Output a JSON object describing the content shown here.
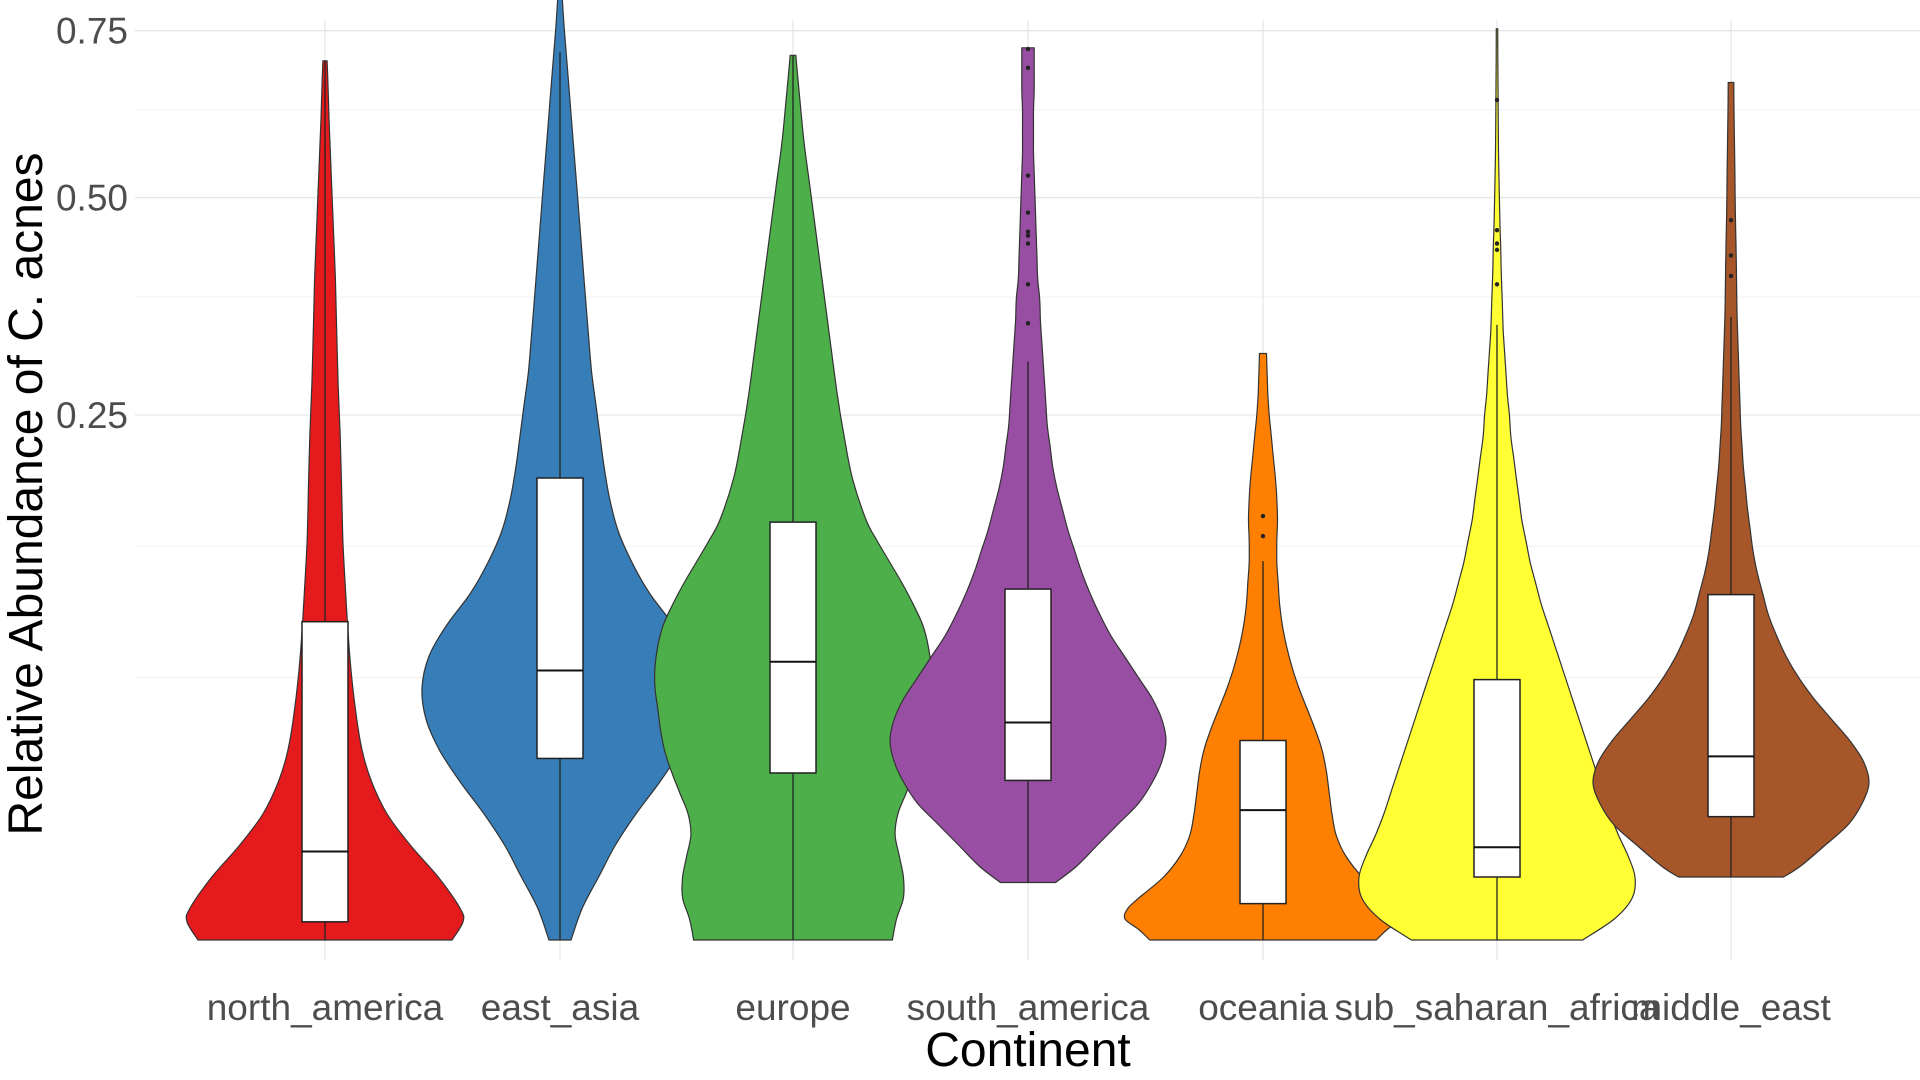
{
  "chart_data": {
    "type": "violin",
    "title": "",
    "xlabel": "Continent",
    "ylabel": "Relative Abundance of C. acnes",
    "y_scale": "sqrt",
    "ylim": [
      0,
      0.88
    ],
    "y_ticks": [
      0.25,
      0.5,
      0.75
    ],
    "y_tick_labels": [
      "0.25",
      "0.50",
      "0.75"
    ],
    "y_minor_ticks": [
      0.0625,
      0.1406,
      0.375,
      0.625
    ],
    "grid": true,
    "legend": "none",
    "categories": [
      "north_america",
      "east_asia",
      "europe",
      "south_america",
      "oceania",
      "sub_saharan_africa",
      "middle_east"
    ],
    "series": [
      {
        "category": "north_america",
        "color": "#E41A1C",
        "min": 0.0,
        "q1": 0.0003,
        "median": 0.0071,
        "q3": 0.0919,
        "max": 0.701,
        "outliers": [],
        "density": [
          [
            0.0,
            0.92
          ],
          [
            0.0003,
            1.0
          ],
          [
            0.0009,
            0.98
          ],
          [
            0.0036,
            0.82
          ],
          [
            0.0081,
            0.62
          ],
          [
            0.0144,
            0.45
          ],
          [
            0.0225,
            0.34
          ],
          [
            0.0324,
            0.27
          ],
          [
            0.0484,
            0.22
          ],
          [
            0.0729,
            0.18
          ],
          [
            0.1089,
            0.15
          ],
          [
            0.1444,
            0.13
          ],
          [
            0.1849,
            0.12
          ],
          [
            0.2304,
            0.11
          ],
          [
            0.2809,
            0.095
          ],
          [
            0.3364,
            0.085
          ],
          [
            0.3969,
            0.075
          ],
          [
            0.4624,
            0.06
          ],
          [
            0.5329,
            0.045
          ],
          [
            0.6084,
            0.03
          ],
          [
            0.6724,
            0.02
          ],
          [
            0.701,
            0.015
          ]
        ]
      },
      {
        "category": "east_asia",
        "color": "#377EB8",
        "min": 0.0,
        "q1": 0.0299,
        "median": 0.0659,
        "q3": 0.1936,
        "max": 0.83,
        "outliers": [
          0.812,
          0.83
        ],
        "density": [
          [
            0.0,
            0.08
          ],
          [
            0.0009,
            0.16
          ],
          [
            0.0036,
            0.28
          ],
          [
            0.0081,
            0.4
          ],
          [
            0.0144,
            0.55
          ],
          [
            0.0225,
            0.72
          ],
          [
            0.0324,
            0.87
          ],
          [
            0.0441,
            0.97
          ],
          [
            0.0576,
            1.0
          ],
          [
            0.0729,
            0.95
          ],
          [
            0.09,
            0.82
          ],
          [
            0.1089,
            0.65
          ],
          [
            0.1296,
            0.52
          ],
          [
            0.1521,
            0.42
          ],
          [
            0.1764,
            0.36
          ],
          [
            0.2025,
            0.32
          ],
          [
            0.2304,
            0.29
          ],
          [
            0.2601,
            0.26
          ],
          [
            0.2916,
            0.23
          ],
          [
            0.3249,
            0.21
          ],
          [
            0.3844,
            0.18
          ],
          [
            0.4489,
            0.15
          ],
          [
            0.5184,
            0.12
          ],
          [
            0.5929,
            0.09
          ],
          [
            0.6724,
            0.06
          ],
          [
            0.7569,
            0.03
          ],
          [
            0.8281,
            0.01
          ]
        ]
      },
      {
        "category": "europe",
        "color": "#4DAF4A",
        "min": 0.0,
        "q1": 0.0253,
        "median": 0.0702,
        "q3": 0.1584,
        "max": 0.71,
        "outliers": [],
        "density": [
          [
            0.0,
            0.72
          ],
          [
            0.0004,
            0.75
          ],
          [
            0.0016,
            0.8
          ],
          [
            0.0036,
            0.8
          ],
          [
            0.0064,
            0.77
          ],
          [
            0.01,
            0.74
          ],
          [
            0.0144,
            0.76
          ],
          [
            0.0196,
            0.82
          ],
          [
            0.0256,
            0.88
          ],
          [
            0.0324,
            0.93
          ],
          [
            0.04,
            0.96
          ],
          [
            0.0484,
            0.98
          ],
          [
            0.0576,
            1.0
          ],
          [
            0.0676,
            1.0
          ],
          [
            0.0784,
            0.98
          ],
          [
            0.09,
            0.94
          ],
          [
            0.1024,
            0.87
          ],
          [
            0.1156,
            0.79
          ],
          [
            0.1296,
            0.7
          ],
          [
            0.1444,
            0.61
          ],
          [
            0.16,
            0.53
          ],
          [
            0.1936,
            0.43
          ],
          [
            0.2304,
            0.37
          ],
          [
            0.2704,
            0.32
          ],
          [
            0.3136,
            0.28
          ],
          [
            0.36,
            0.24
          ],
          [
            0.4096,
            0.2
          ],
          [
            0.4624,
            0.16
          ],
          [
            0.5184,
            0.12
          ],
          [
            0.5776,
            0.08
          ],
          [
            0.64,
            0.05
          ],
          [
            0.71,
            0.02
          ]
        ]
      },
      {
        "category": "south_america",
        "color": "#984EA3",
        "min": 0.003,
        "q1": 0.0231,
        "median": 0.0429,
        "q3": 0.1117,
        "max": 0.722,
        "outliers": [
          0.345,
          0.39,
          0.44,
          0.45,
          0.455,
          0.48,
          0.53,
          0.69,
          0.72
        ],
        "density": [
          [
            0.003,
            0.2
          ],
          [
            0.0049,
            0.35
          ],
          [
            0.0081,
            0.5
          ],
          [
            0.0121,
            0.65
          ],
          [
            0.0169,
            0.8
          ],
          [
            0.0225,
            0.9
          ],
          [
            0.0289,
            0.97
          ],
          [
            0.0361,
            1.0
          ],
          [
            0.0441,
            0.97
          ],
          [
            0.0529,
            0.9
          ],
          [
            0.0625,
            0.8
          ],
          [
            0.0729,
            0.7
          ],
          [
            0.0841,
            0.6
          ],
          [
            0.0961,
            0.52
          ],
          [
            0.1089,
            0.45
          ],
          [
            0.1225,
            0.39
          ],
          [
            0.1369,
            0.34
          ],
          [
            0.1521,
            0.29
          ],
          [
            0.1681,
            0.25
          ],
          [
            0.1849,
            0.21
          ],
          [
            0.2025,
            0.18
          ],
          [
            0.2209,
            0.16
          ],
          [
            0.2401,
            0.14
          ],
          [
            0.2601,
            0.13
          ],
          [
            0.2809,
            0.12
          ],
          [
            0.3025,
            0.11
          ],
          [
            0.3249,
            0.1
          ],
          [
            0.3481,
            0.09
          ],
          [
            0.3721,
            0.085
          ],
          [
            0.3969,
            0.07
          ],
          [
            0.4225,
            0.065
          ],
          [
            0.4489,
            0.06
          ],
          [
            0.4761,
            0.055
          ],
          [
            0.5041,
            0.05
          ],
          [
            0.5329,
            0.045
          ],
          [
            0.5625,
            0.04
          ],
          [
            0.5929,
            0.04
          ],
          [
            0.6241,
            0.04
          ],
          [
            0.6561,
            0.045
          ],
          [
            0.6889,
            0.045
          ],
          [
            0.722,
            0.045
          ]
        ]
      },
      {
        "category": "oceania",
        "color": "#FF7F00",
        "min": 0.0,
        "q1": 0.0012,
        "median": 0.0153,
        "q3": 0.0361,
        "max": 0.312,
        "outliers": [
          0.148,
          0.163
        ],
        "density": [
          [
            0.0,
            0.82
          ],
          [
            0.0001,
            0.9
          ],
          [
            0.0004,
            1.0
          ],
          [
            0.0009,
            0.98
          ],
          [
            0.0016,
            0.9
          ],
          [
            0.0036,
            0.72
          ],
          [
            0.0064,
            0.6
          ],
          [
            0.01,
            0.53
          ],
          [
            0.0144,
            0.5
          ],
          [
            0.0196,
            0.48
          ],
          [
            0.0256,
            0.46
          ],
          [
            0.0324,
            0.43
          ],
          [
            0.04,
            0.38
          ],
          [
            0.0484,
            0.32
          ],
          [
            0.0576,
            0.26
          ],
          [
            0.0676,
            0.21
          ],
          [
            0.0784,
            0.17
          ],
          [
            0.09,
            0.14
          ],
          [
            0.1024,
            0.12
          ],
          [
            0.1156,
            0.11
          ],
          [
            0.1296,
            0.1
          ],
          [
            0.1444,
            0.1
          ],
          [
            0.16,
            0.105
          ],
          [
            0.1764,
            0.1
          ],
          [
            0.1936,
            0.09
          ],
          [
            0.2116,
            0.075
          ],
          [
            0.2304,
            0.06
          ],
          [
            0.25,
            0.045
          ],
          [
            0.2704,
            0.035
          ],
          [
            0.2916,
            0.03
          ],
          [
            0.312,
            0.025
          ]
        ]
      },
      {
        "category": "sub_saharan_africa",
        "color": "#FFFF33",
        "min": 0.0,
        "q1": 0.0036,
        "median": 0.0078,
        "q3": 0.0615,
        "max": 0.753,
        "outliers": [
          0.39,
          0.432,
          0.44,
          0.457,
          0.64
        ],
        "density": [
          [
            0.0,
            0.62
          ],
          [
            0.0004,
            0.85
          ],
          [
            0.0016,
            0.98
          ],
          [
            0.0036,
            1.0
          ],
          [
            0.0064,
            0.95
          ],
          [
            0.01,
            0.88
          ],
          [
            0.0144,
            0.82
          ],
          [
            0.0196,
            0.77
          ],
          [
            0.0256,
            0.72
          ],
          [
            0.0324,
            0.67
          ],
          [
            0.04,
            0.62
          ],
          [
            0.0484,
            0.57
          ],
          [
            0.0576,
            0.52
          ],
          [
            0.0676,
            0.47
          ],
          [
            0.0784,
            0.42
          ],
          [
            0.09,
            0.37
          ],
          [
            0.1024,
            0.32
          ],
          [
            0.1156,
            0.28
          ],
          [
            0.1296,
            0.24
          ],
          [
            0.1444,
            0.21
          ],
          [
            0.16,
            0.18
          ],
          [
            0.1764,
            0.16
          ],
          [
            0.1936,
            0.14
          ],
          [
            0.2116,
            0.12
          ],
          [
            0.2304,
            0.1
          ],
          [
            0.25,
            0.09
          ],
          [
            0.2704,
            0.075
          ],
          [
            0.2916,
            0.065
          ],
          [
            0.3136,
            0.055
          ],
          [
            0.3364,
            0.045
          ],
          [
            0.36,
            0.04
          ],
          [
            0.3844,
            0.035
          ],
          [
            0.4096,
            0.03
          ],
          [
            0.4356,
            0.027
          ],
          [
            0.4624,
            0.022
          ],
          [
            0.5184,
            0.015
          ],
          [
            0.5776,
            0.01
          ],
          [
            0.64,
            0.008
          ],
          [
            0.7056,
            0.006
          ],
          [
            0.753,
            0.005
          ]
        ]
      },
      {
        "category": "middle_east",
        "color": "#A65628",
        "min": 0.0036,
        "q1": 0.0138,
        "median": 0.0306,
        "q3": 0.1082,
        "max": 0.667,
        "outliers": [
          0.4,
          0.425,
          0.47
        ],
        "density": [
          [
            0.0036,
            0.38
          ],
          [
            0.0049,
            0.5
          ],
          [
            0.0081,
            0.68
          ],
          [
            0.0121,
            0.85
          ],
          [
            0.0169,
            0.95
          ],
          [
            0.0225,
            1.0
          ],
          [
            0.0289,
            0.96
          ],
          [
            0.0361,
            0.86
          ],
          [
            0.0441,
            0.73
          ],
          [
            0.0529,
            0.6
          ],
          [
            0.0625,
            0.49
          ],
          [
            0.0729,
            0.4
          ],
          [
            0.0841,
            0.33
          ],
          [
            0.0961,
            0.27
          ],
          [
            0.1089,
            0.23
          ],
          [
            0.1225,
            0.19
          ],
          [
            0.1369,
            0.16
          ],
          [
            0.1521,
            0.14
          ],
          [
            0.1681,
            0.12
          ],
          [
            0.1849,
            0.105
          ],
          [
            0.2025,
            0.09
          ],
          [
            0.2209,
            0.08
          ],
          [
            0.2401,
            0.07
          ],
          [
            0.2601,
            0.065
          ],
          [
            0.2809,
            0.06
          ],
          [
            0.3025,
            0.055
          ],
          [
            0.3249,
            0.05
          ],
          [
            0.3481,
            0.045
          ],
          [
            0.3721,
            0.042
          ],
          [
            0.3969,
            0.04
          ],
          [
            0.4225,
            0.038
          ],
          [
            0.4489,
            0.035
          ],
          [
            0.4761,
            0.032
          ],
          [
            0.5041,
            0.03
          ],
          [
            0.5329,
            0.028
          ],
          [
            0.5625,
            0.026
          ],
          [
            0.5929,
            0.024
          ],
          [
            0.6241,
            0.022
          ],
          [
            0.667,
            0.02
          ]
        ]
      }
    ]
  }
}
